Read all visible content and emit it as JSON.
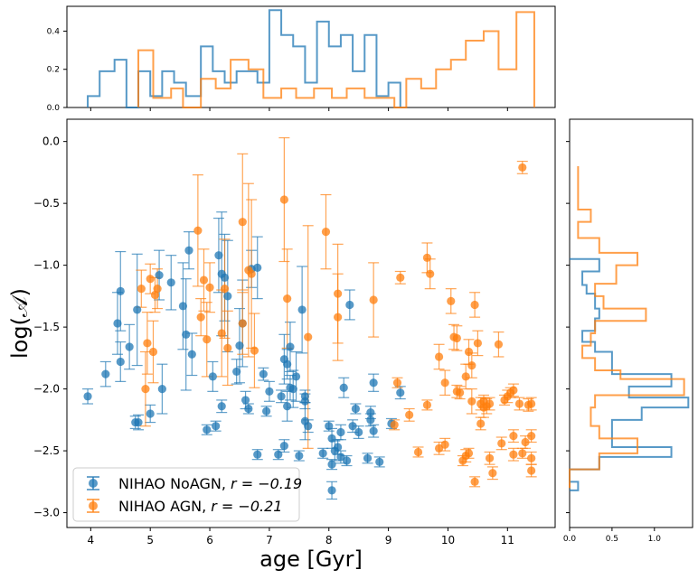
{
  "chart_data": {
    "type": "scatter",
    "xlabel": "age [Gyr]",
    "ylabel": "log(𝒜)",
    "xlim": [
      3.6,
      11.8
    ],
    "ylim": [
      -3.12,
      0.18
    ],
    "xticks": [
      4,
      5,
      6,
      7,
      8,
      9,
      10,
      11
    ],
    "yticks": [
      0.0,
      -0.5,
      -1.0,
      -1.5,
      -2.0,
      -2.5,
      -3.0
    ],
    "ytick_labels": [
      "0.0",
      "−0.5",
      "−1.0",
      "−1.5",
      "−2.0",
      "−2.5",
      "−3.0"
    ],
    "legend": {
      "position": "lower-left",
      "entries": [
        {
          "prefix": "NIHAO NoAGN, ",
          "math": "r = −0.19"
        },
        {
          "prefix": "NIHAO AGN, ",
          "math": "r = −0.21"
        }
      ]
    },
    "colors": {
      "noagn": "#1f77b4",
      "agn": "#ff7f0e"
    },
    "series": [
      {
        "key": "noagn",
        "points": [
          [
            3.95,
            -2.06,
            0.06
          ],
          [
            4.25,
            -1.88,
            0.1
          ],
          [
            4.45,
            -1.47,
            0.25
          ],
          [
            4.5,
            -1.21,
            0.32
          ],
          [
            4.5,
            -1.78,
            0.16
          ],
          [
            4.65,
            -1.66,
            0.18
          ],
          [
            4.75,
            -2.27,
            0.05
          ],
          [
            4.8,
            -2.27,
            0.06
          ],
          [
            4.78,
            -1.36,
            0.45
          ],
          [
            5.0,
            -2.2,
            0.07
          ],
          [
            5.15,
            -1.08,
            0.2
          ],
          [
            5.2,
            -2.0,
            0.2
          ],
          [
            5.35,
            -1.14,
            0.22
          ],
          [
            5.55,
            -1.33,
            0.35
          ],
          [
            5.6,
            -1.56,
            0.45
          ],
          [
            5.65,
            -0.88,
            0.15
          ],
          [
            5.7,
            -1.72,
            0.17
          ],
          [
            5.95,
            -2.33,
            0.04
          ],
          [
            6.05,
            -1.9,
            0.12
          ],
          [
            6.1,
            -2.3,
            0.04
          ],
          [
            6.15,
            -0.92,
            0.3
          ],
          [
            6.2,
            -1.07,
            0.5
          ],
          [
            6.2,
            -2.14,
            0.05
          ],
          [
            6.25,
            -1.1,
            0.35
          ],
          [
            6.3,
            -1.25,
            0.45
          ],
          [
            6.45,
            -1.86,
            0.1
          ],
          [
            6.5,
            -1.65,
            0.3
          ],
          [
            6.55,
            -1.47,
            0.35
          ],
          [
            6.6,
            -2.09,
            0.07
          ],
          [
            6.65,
            -2.16,
            0.04
          ],
          [
            6.7,
            -1.03,
            0.15
          ],
          [
            6.8,
            -1.02,
            0.25
          ],
          [
            6.8,
            -2.53,
            0.04
          ],
          [
            6.9,
            -1.88,
            0.05
          ],
          [
            6.95,
            -2.18,
            0.04
          ],
          [
            7.0,
            -2.02,
            0.08
          ],
          [
            7.15,
            -2.53,
            0.04
          ],
          [
            7.2,
            -2.06,
            0.05
          ],
          [
            7.25,
            -2.46,
            0.05
          ],
          [
            7.25,
            -1.76,
            0.2
          ],
          [
            7.3,
            -2.14,
            0.12
          ],
          [
            7.3,
            -1.8,
            0.12
          ],
          [
            7.35,
            -1.99,
            0.1
          ],
          [
            7.35,
            -1.66,
            0.2
          ],
          [
            7.4,
            -2.0,
            0.15
          ],
          [
            7.45,
            -1.9,
            0.2
          ],
          [
            7.5,
            -2.54,
            0.04
          ],
          [
            7.55,
            -1.36,
            0.35
          ],
          [
            7.6,
            -2.06,
            0.05
          ],
          [
            7.6,
            -2.1,
            0.06
          ],
          [
            7.6,
            -2.26,
            0.15
          ],
          [
            7.65,
            -2.3,
            0.05
          ],
          [
            7.9,
            -2.52,
            0.04
          ],
          [
            8.0,
            -2.3,
            0.04
          ],
          [
            8.05,
            -2.82,
            0.07
          ],
          [
            8.05,
            -2.61,
            0.04
          ],
          [
            8.05,
            -2.4,
            0.08
          ],
          [
            8.1,
            -2.5,
            0.08
          ],
          [
            8.15,
            -2.47,
            0.06
          ],
          [
            8.2,
            -2.55,
            0.05
          ],
          [
            8.2,
            -2.35,
            0.06
          ],
          [
            8.25,
            -1.99,
            0.08
          ],
          [
            8.3,
            -2.58,
            0.04
          ],
          [
            8.35,
            -1.32,
            0.12
          ],
          [
            8.4,
            -2.3,
            0.05
          ],
          [
            8.45,
            -2.16,
            0.04
          ],
          [
            8.5,
            -2.35,
            0.05
          ],
          [
            8.65,
            -2.56,
            0.04
          ],
          [
            8.7,
            -2.19,
            0.05
          ],
          [
            8.7,
            -2.25,
            0.05
          ],
          [
            8.75,
            -1.95,
            0.07
          ],
          [
            8.75,
            -2.34,
            0.05
          ],
          [
            8.85,
            -2.59,
            0.04
          ],
          [
            9.05,
            -2.28,
            0.04
          ],
          [
            9.2,
            -2.03,
            0.05
          ]
        ]
      },
      {
        "key": "agn",
        "points": [
          [
            4.85,
            -1.19,
            0.15
          ],
          [
            4.92,
            -2.0,
            0.3
          ],
          [
            4.95,
            -1.63,
            0.25
          ],
          [
            5.0,
            -1.11,
            0.12
          ],
          [
            5.05,
            -1.7,
            0.25
          ],
          [
            5.08,
            -1.24,
            0.14
          ],
          [
            5.12,
            -1.19,
            0.16
          ],
          [
            5.8,
            -0.72,
            0.45
          ],
          [
            5.85,
            -1.42,
            0.15
          ],
          [
            5.9,
            -1.12,
            0.25
          ],
          [
            5.95,
            -1.6,
            0.3
          ],
          [
            6.0,
            -1.18,
            0.2
          ],
          [
            6.2,
            -1.55,
            0.35
          ],
          [
            6.25,
            -1.19,
            0.4
          ],
          [
            6.3,
            -1.67,
            0.3
          ],
          [
            6.55,
            -1.47,
            0.25
          ],
          [
            6.55,
            -0.65,
            0.55
          ],
          [
            6.65,
            -1.04,
            0.7
          ],
          [
            6.7,
            -1.07,
            0.6
          ],
          [
            6.75,
            -1.69,
            0.3
          ],
          [
            7.25,
            -0.47,
            0.5
          ],
          [
            7.3,
            -1.27,
            0.4
          ],
          [
            7.65,
            -1.58,
            0.9
          ],
          [
            7.95,
            -0.73,
            0.3
          ],
          [
            8.15,
            -1.42,
            0.35
          ],
          [
            8.15,
            -1.23,
            0.4
          ],
          [
            8.75,
            -1.28,
            0.3
          ],
          [
            9.1,
            -2.29,
            0.04
          ],
          [
            9.15,
            -1.95,
            0.04
          ],
          [
            9.2,
            -1.1,
            0.05
          ],
          [
            9.35,
            -2.21,
            0.05
          ],
          [
            9.5,
            -2.51,
            0.04
          ],
          [
            9.65,
            -2.13,
            0.04
          ],
          [
            9.65,
            -0.94,
            0.12
          ],
          [
            9.7,
            -1.07,
            0.12
          ],
          [
            9.85,
            -1.74,
            0.1
          ],
          [
            9.85,
            -2.48,
            0.05
          ],
          [
            9.95,
            -1.95,
            0.1
          ],
          [
            9.95,
            -2.45,
            0.05
          ],
          [
            10.05,
            -1.29,
            0.1
          ],
          [
            10.1,
            -1.58,
            0.1
          ],
          [
            10.15,
            -1.59,
            0.1
          ],
          [
            10.15,
            -2.02,
            0.05
          ],
          [
            10.2,
            -2.03,
            0.05
          ],
          [
            10.25,
            -2.58,
            0.04
          ],
          [
            10.3,
            -1.9,
            0.1
          ],
          [
            10.3,
            -2.54,
            0.05
          ],
          [
            10.35,
            -1.7,
            0.1
          ],
          [
            10.35,
            -2.52,
            0.04
          ],
          [
            10.4,
            -1.81,
            0.1
          ],
          [
            10.4,
            -2.1,
            0.1
          ],
          [
            10.45,
            -2.75,
            0.04
          ],
          [
            10.45,
            -1.32,
            0.1
          ],
          [
            10.5,
            -1.63,
            0.1
          ],
          [
            10.55,
            -2.12,
            0.05
          ],
          [
            10.55,
            -2.28,
            0.05
          ],
          [
            10.6,
            -2.1,
            0.05
          ],
          [
            10.6,
            -2.15,
            0.08
          ],
          [
            10.65,
            -2.14,
            0.06
          ],
          [
            10.7,
            -2.56,
            0.05
          ],
          [
            10.7,
            -2.12,
            0.05
          ],
          [
            10.75,
            -2.68,
            0.05
          ],
          [
            10.85,
            -1.64,
            0.1
          ],
          [
            10.9,
            -2.44,
            0.05
          ],
          [
            10.95,
            -2.09,
            0.04
          ],
          [
            11.0,
            -2.06,
            0.05
          ],
          [
            11.05,
            -2.03,
            0.04
          ],
          [
            11.1,
            -2.01,
            0.05
          ],
          [
            11.1,
            -2.38,
            0.05
          ],
          [
            11.1,
            -2.53,
            0.05
          ],
          [
            11.2,
            -2.12,
            0.05
          ],
          [
            11.25,
            -0.21,
            0.05
          ],
          [
            11.25,
            -2.52,
            0.04
          ],
          [
            11.3,
            -2.43,
            0.05
          ],
          [
            11.35,
            -2.13,
            0.05
          ],
          [
            11.4,
            -2.38,
            0.05
          ],
          [
            11.4,
            -2.12,
            0.05
          ],
          [
            11.4,
            -2.56,
            0.05
          ],
          [
            11.4,
            -2.66,
            0.05
          ]
        ]
      }
    ],
    "top_hist": {
      "ylim": [
        0,
        0.53
      ],
      "yticks": [
        0.0,
        0.2,
        0.4
      ],
      "ytick_labels": [
        "0.0",
        "0.2",
        "0.4"
      ],
      "noagn": {
        "edges": [
          3.95,
          4.15,
          4.4,
          4.6,
          4.8,
          5.0,
          5.2,
          5.4,
          5.6,
          5.85,
          6.05,
          6.25,
          6.45,
          6.6,
          6.8,
          7.0,
          7.2,
          7.4,
          7.6,
          7.8,
          8.0,
          8.2,
          8.4,
          8.6,
          8.8,
          9.0,
          9.2
        ],
        "heights": [
          0.06,
          0.19,
          0.25,
          0.0,
          0.19,
          0.06,
          0.19,
          0.13,
          0.06,
          0.32,
          0.19,
          0.13,
          0.19,
          0.19,
          0.13,
          0.51,
          0.38,
          0.32,
          0.13,
          0.45,
          0.32,
          0.38,
          0.19,
          0.38,
          0.06,
          0.13
        ]
      },
      "agn": {
        "edges": [
          4.8,
          5.05,
          5.35,
          5.55,
          5.85,
          6.1,
          6.35,
          6.65,
          6.9,
          7.2,
          7.45,
          7.75,
          8.05,
          8.3,
          8.6,
          8.85,
          9.1,
          9.3,
          9.55,
          9.8,
          10.05,
          10.3,
          10.6,
          10.85,
          11.15,
          11.45
        ],
        "heights": [
          0.3,
          0.05,
          0.1,
          0.0,
          0.15,
          0.1,
          0.25,
          0.2,
          0.05,
          0.1,
          0.05,
          0.1,
          0.05,
          0.1,
          0.05,
          0.05,
          0.0,
          0.15,
          0.1,
          0.2,
          0.25,
          0.35,
          0.4,
          0.2,
          0.5
        ]
      }
    },
    "side_hist": {
      "xlim": [
        0,
        1.45
      ],
      "xticks": [
        0.0,
        0.5,
        1.0
      ],
      "xtick_labels": [
        "0.0",
        "0.5",
        "1.0"
      ],
      "noagn": {
        "edges": [
          -2.82,
          -2.75,
          -2.65,
          -2.55,
          -2.47,
          -2.32,
          -2.25,
          -2.15,
          -2.07,
          -1.98,
          -1.88,
          -1.7,
          -1.62,
          -1.53,
          -1.43,
          -1.35,
          -1.23,
          -1.16,
          -1.05,
          -0.95
        ],
        "heights": [
          0.1,
          0.0,
          0.35,
          1.2,
          0.5,
          0.5,
          0.85,
          1.4,
          0.7,
          1.2,
          0.5,
          0.3,
          0.15,
          0.3,
          0.35,
          0.3,
          0.2,
          0.15,
          0.35
        ]
      },
      "agn": {
        "edges": [
          -2.8,
          -2.65,
          -2.52,
          -2.4,
          -2.3,
          -2.15,
          -2.05,
          -1.92,
          -1.85,
          -1.75,
          -1.65,
          -1.55,
          -1.45,
          -1.35,
          -1.25,
          -1.15,
          -1.0,
          -0.9,
          -0.78,
          -0.65,
          -0.55,
          -0.35,
          -0.2
        ],
        "heights": [
          0.0,
          0.35,
          0.8,
          0.35,
          0.25,
          0.3,
          1.35,
          0.6,
          0.3,
          0.15,
          0.25,
          0.3,
          0.9,
          0.4,
          0.3,
          0.55,
          0.8,
          0.35,
          0.1,
          0.25,
          0.1,
          0.1,
          0.1
        ]
      }
    }
  }
}
